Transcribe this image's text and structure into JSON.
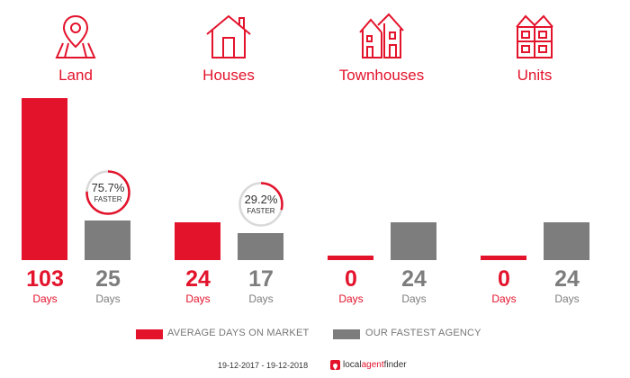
{
  "categories": [
    {
      "label": "Land",
      "icon": "map-pin-icon"
    },
    {
      "label": "Houses",
      "icon": "house-icon"
    },
    {
      "label": "Townhouses",
      "icon": "townhouse-icon"
    },
    {
      "label": "Units",
      "icon": "units-icon"
    }
  ],
  "unit_label": "Days",
  "badges": [
    {
      "category": "Land",
      "percent": "75.7%",
      "fraction": 0.757,
      "label": "FASTER"
    },
    {
      "category": "Houses",
      "percent": "29.2%",
      "fraction": 0.292,
      "label": "FASTER"
    }
  ],
  "legend": {
    "market": "AVERAGE DAYS ON MARKET",
    "agency": "OUR FASTEST AGENCY"
  },
  "footer": {
    "date_range": "19-12-2017 - 19-12-2018",
    "brand_part1": "local",
    "brand_part2": "agent",
    "brand_part3": "finder"
  },
  "colors": {
    "market": "#e3132c",
    "agency": "#7d7d7d",
    "track": "#d9d9d9"
  },
  "chart_data": {
    "type": "bar",
    "categories": [
      "Land",
      "Houses",
      "Townhouses",
      "Units"
    ],
    "series": [
      {
        "name": "AVERAGE DAYS ON MARKET",
        "values": [
          103,
          24,
          0,
          0
        ]
      },
      {
        "name": "OUR FASTEST AGENCY",
        "values": [
          25,
          17,
          24,
          24
        ]
      }
    ],
    "ylim": [
      0,
      103
    ],
    "grid": false,
    "legend_position": "bottom"
  }
}
